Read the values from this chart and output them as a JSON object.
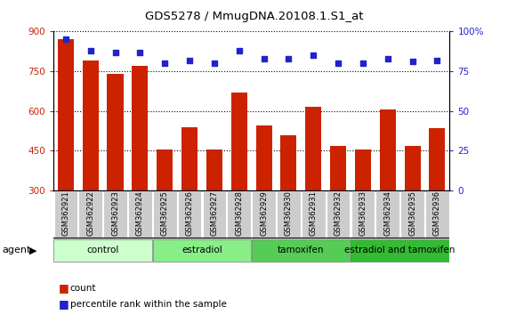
{
  "title": "GDS5278 / MmugDNA.20108.1.S1_at",
  "samples": [
    "GSM362921",
    "GSM362922",
    "GSM362923",
    "GSM362924",
    "GSM362925",
    "GSM362926",
    "GSM362927",
    "GSM362928",
    "GSM362929",
    "GSM362930",
    "GSM362931",
    "GSM362932",
    "GSM362933",
    "GSM362934",
    "GSM362935",
    "GSM362936"
  ],
  "counts": [
    870,
    790,
    740,
    770,
    455,
    540,
    455,
    670,
    545,
    510,
    615,
    470,
    455,
    605,
    470,
    535
  ],
  "percentile_ranks": [
    95,
    88,
    87,
    87,
    80,
    82,
    80,
    88,
    83,
    83,
    85,
    80,
    80,
    83,
    81,
    82
  ],
  "ylim_left": [
    300,
    900
  ],
  "ylim_right": [
    0,
    100
  ],
  "yticks_left": [
    300,
    450,
    600,
    750,
    900
  ],
  "yticks_right": [
    0,
    25,
    50,
    75,
    100
  ],
  "groups": [
    {
      "label": "control",
      "start": 0,
      "end": 4,
      "color": "#ccffcc"
    },
    {
      "label": "estradiol",
      "start": 4,
      "end": 8,
      "color": "#88ee88"
    },
    {
      "label": "tamoxifen",
      "start": 8,
      "end": 12,
      "color": "#55cc55"
    },
    {
      "label": "estradiol and tamoxifen",
      "start": 12,
      "end": 16,
      "color": "#33bb33"
    }
  ],
  "bar_color": "#cc2200",
  "dot_color": "#2222cc",
  "bar_bottom": 300,
  "agent_label": "agent",
  "legend_count_label": "count",
  "legend_pct_label": "percentile rank within the sample",
  "tick_area_color": "#cccccc",
  "group_border_color": "#000000",
  "tick_label_fontsize": 6.0,
  "group_label_fontsize": 7.5
}
